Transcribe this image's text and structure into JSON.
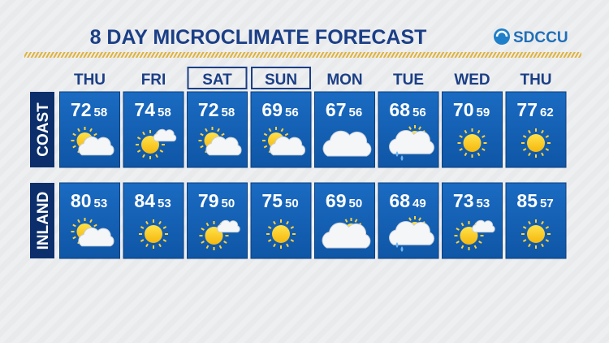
{
  "header": {
    "title": "8 DAY MICROCLIMATE FORECAST",
    "logo": "SDCCU"
  },
  "days": [
    "THU",
    "FRI",
    "SAT",
    "SUN",
    "MON",
    "TUE",
    "WED",
    "THU"
  ],
  "rows": [
    {
      "label": "COAST",
      "highs": [
        72,
        74,
        72,
        69,
        67,
        68,
        70,
        77
      ],
      "lows": [
        58,
        58,
        58,
        56,
        56,
        56,
        59,
        62
      ]
    },
    {
      "label": "INLAND",
      "highs": [
        80,
        84,
        79,
        75,
        69,
        68,
        73,
        85
      ],
      "lows": [
        53,
        53,
        50,
        50,
        50,
        49,
        53,
        57
      ]
    }
  ]
}
